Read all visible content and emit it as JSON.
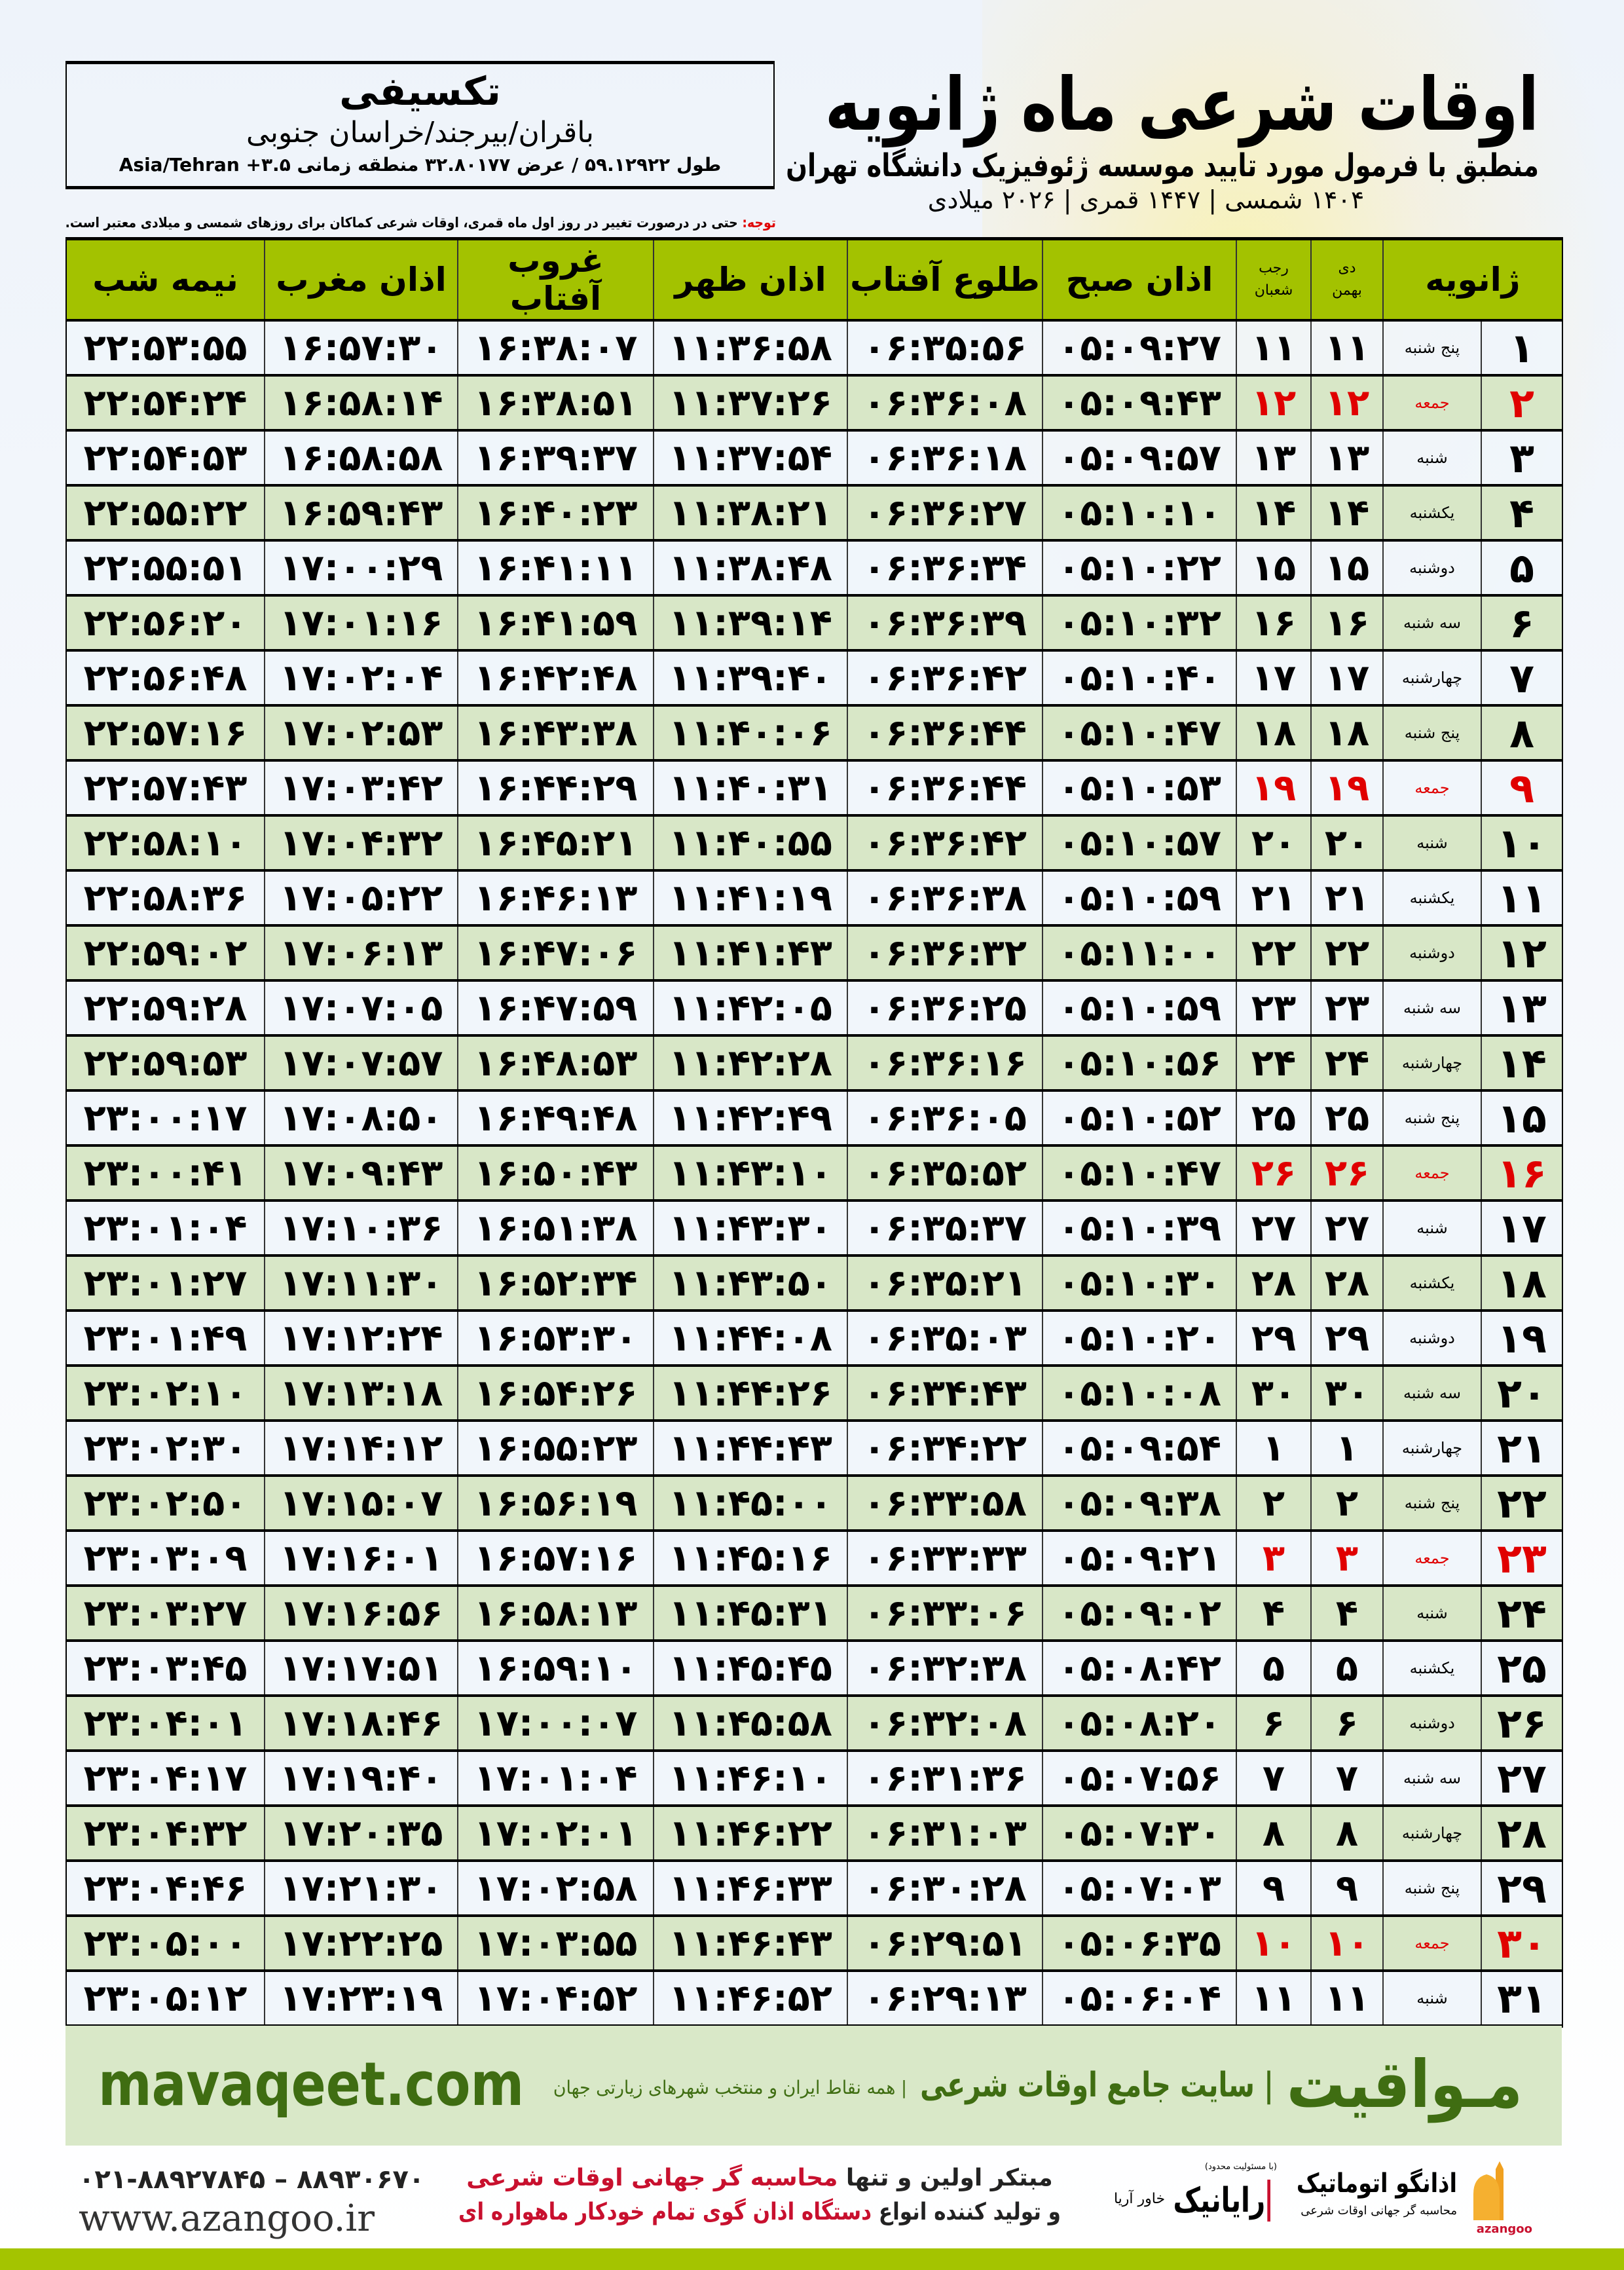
{
  "header": {
    "title": "اوقات شرعی ماه ژانویه",
    "subtitle": "منطبق با فرمول مورد تایید موسسه ژئوفیزیک دانشگاه تهران",
    "years": "۱۴۰۴ شمسی | ۱۴۴۷ قمری | ۲۰۲۶ میلادی"
  },
  "location": {
    "name": "تکسیفی",
    "path": "باقران/بیرجند/خراسان جنوبی",
    "coords": "طول ۵۹.۱۲۹۲۲ / عرض ۳۲.۸۰۱۷۷ منطقه زمانی ۳.۵+ Asia/Tehran"
  },
  "note": {
    "label": "توجه:",
    "text": " حتی در درصورت تغییر در روز اول ماه قمری، اوقات شرعی کماکان برای روزهای شمسی و میلادی معتبر است."
  },
  "table": {
    "columns": {
      "day": "ژانویه",
      "shamsi_top": "دی",
      "shamsi_bottom": "بهمن",
      "qamari_top": "رجب",
      "qamari_bottom": "شعبان",
      "fajr": "اذان صبح",
      "sunrise": "طلوع آفتاب",
      "dhuhr": "اذان ظهر",
      "sunset": "غروب آفتاب",
      "maghrib": "اذان مغرب",
      "midnight": "نیمه شب"
    },
    "holiday_color": "#e00000",
    "header_color": "#a3c200",
    "rows": [
      [
        "۱",
        "پنج شنبه",
        "۱۱",
        "۱۱",
        "۰۵:۰۹:۲۷",
        "۰۶:۳۵:۵۶",
        "۱۱:۳۶:۵۸",
        "۱۶:۳۸:۰۷",
        "۱۶:۵۷:۳۰",
        "۲۲:۵۳:۵۵",
        false
      ],
      [
        "۲",
        "جمعه",
        "۱۲",
        "۱۲",
        "۰۵:۰۹:۴۳",
        "۰۶:۳۶:۰۸",
        "۱۱:۳۷:۲۶",
        "۱۶:۳۸:۵۱",
        "۱۶:۵۸:۱۴",
        "۲۲:۵۴:۲۴",
        true
      ],
      [
        "۳",
        "شنبه",
        "۱۳",
        "۱۳",
        "۰۵:۰۹:۵۷",
        "۰۶:۳۶:۱۸",
        "۱۱:۳۷:۵۴",
        "۱۶:۳۹:۳۷",
        "۱۶:۵۸:۵۸",
        "۲۲:۵۴:۵۳",
        false
      ],
      [
        "۴",
        "یکشنبه",
        "۱۴",
        "۱۴",
        "۰۵:۱۰:۱۰",
        "۰۶:۳۶:۲۷",
        "۱۱:۳۸:۲۱",
        "۱۶:۴۰:۲۳",
        "۱۶:۵۹:۴۳",
        "۲۲:۵۵:۲۲",
        false
      ],
      [
        "۵",
        "دوشنبه",
        "۱۵",
        "۱۵",
        "۰۵:۱۰:۲۲",
        "۰۶:۳۶:۳۴",
        "۱۱:۳۸:۴۸",
        "۱۶:۴۱:۱۱",
        "۱۷:۰۰:۲۹",
        "۲۲:۵۵:۵۱",
        false
      ],
      [
        "۶",
        "سه شنبه",
        "۱۶",
        "۱۶",
        "۰۵:۱۰:۳۲",
        "۰۶:۳۶:۳۹",
        "۱۱:۳۹:۱۴",
        "۱۶:۴۱:۵۹",
        "۱۷:۰۱:۱۶",
        "۲۲:۵۶:۲۰",
        false
      ],
      [
        "۷",
        "چهارشنبه",
        "۱۷",
        "۱۷",
        "۰۵:۱۰:۴۰",
        "۰۶:۳۶:۴۲",
        "۱۱:۳۹:۴۰",
        "۱۶:۴۲:۴۸",
        "۱۷:۰۲:۰۴",
        "۲۲:۵۶:۴۸",
        false
      ],
      [
        "۸",
        "پنج شنبه",
        "۱۸",
        "۱۸",
        "۰۵:۱۰:۴۷",
        "۰۶:۳۶:۴۴",
        "۱۱:۴۰:۰۶",
        "۱۶:۴۳:۳۸",
        "۱۷:۰۲:۵۳",
        "۲۲:۵۷:۱۶",
        false
      ],
      [
        "۹",
        "جمعه",
        "۱۹",
        "۱۹",
        "۰۵:۱۰:۵۳",
        "۰۶:۳۶:۴۴",
        "۱۱:۴۰:۳۱",
        "۱۶:۴۴:۲۹",
        "۱۷:۰۳:۴۲",
        "۲۲:۵۷:۴۳",
        true
      ],
      [
        "۱۰",
        "شنبه",
        "۲۰",
        "۲۰",
        "۰۵:۱۰:۵۷",
        "۰۶:۳۶:۴۲",
        "۱۱:۴۰:۵۵",
        "۱۶:۴۵:۲۱",
        "۱۷:۰۴:۳۲",
        "۲۲:۵۸:۱۰",
        false
      ],
      [
        "۱۱",
        "یکشنبه",
        "۲۱",
        "۲۱",
        "۰۵:۱۰:۵۹",
        "۰۶:۳۶:۳۸",
        "۱۱:۴۱:۱۹",
        "۱۶:۴۶:۱۳",
        "۱۷:۰۵:۲۲",
        "۲۲:۵۸:۳۶",
        false
      ],
      [
        "۱۲",
        "دوشنبه",
        "۲۲",
        "۲۲",
        "۰۵:۱۱:۰۰",
        "۰۶:۳۶:۳۲",
        "۱۱:۴۱:۴۳",
        "۱۶:۴۷:۰۶",
        "۱۷:۰۶:۱۳",
        "۲۲:۵۹:۰۲",
        false
      ],
      [
        "۱۳",
        "سه شنبه",
        "۲۳",
        "۲۳",
        "۰۵:۱۰:۵۹",
        "۰۶:۳۶:۲۵",
        "۱۱:۴۲:۰۵",
        "۱۶:۴۷:۵۹",
        "۱۷:۰۷:۰۵",
        "۲۲:۵۹:۲۸",
        false
      ],
      [
        "۱۴",
        "چهارشنبه",
        "۲۴",
        "۲۴",
        "۰۵:۱۰:۵۶",
        "۰۶:۳۶:۱۶",
        "۱۱:۴۲:۲۸",
        "۱۶:۴۸:۵۳",
        "۱۷:۰۷:۵۷",
        "۲۲:۵۹:۵۳",
        false
      ],
      [
        "۱۵",
        "پنج شنبه",
        "۲۵",
        "۲۵",
        "۰۵:۱۰:۵۲",
        "۰۶:۳۶:۰۵",
        "۱۱:۴۲:۴۹",
        "۱۶:۴۹:۴۸",
        "۱۷:۰۸:۵۰",
        "۲۳:۰۰:۱۷",
        false
      ],
      [
        "۱۶",
        "جمعه",
        "۲۶",
        "۲۶",
        "۰۵:۱۰:۴۷",
        "۰۶:۳۵:۵۲",
        "۱۱:۴۳:۱۰",
        "۱۶:۵۰:۴۳",
        "۱۷:۰۹:۴۳",
        "۲۳:۰۰:۴۱",
        true
      ],
      [
        "۱۷",
        "شنبه",
        "۲۷",
        "۲۷",
        "۰۵:۱۰:۳۹",
        "۰۶:۳۵:۳۷",
        "۱۱:۴۳:۳۰",
        "۱۶:۵۱:۳۸",
        "۱۷:۱۰:۳۶",
        "۲۳:۰۱:۰۴",
        false
      ],
      [
        "۱۸",
        "یکشنبه",
        "۲۸",
        "۲۸",
        "۰۵:۱۰:۳۰",
        "۰۶:۳۵:۲۱",
        "۱۱:۴۳:۵۰",
        "۱۶:۵۲:۳۴",
        "۱۷:۱۱:۳۰",
        "۲۳:۰۱:۲۷",
        false
      ],
      [
        "۱۹",
        "دوشنبه",
        "۲۹",
        "۲۹",
        "۰۵:۱۰:۲۰",
        "۰۶:۳۵:۰۳",
        "۱۱:۴۴:۰۸",
        "۱۶:۵۳:۳۰",
        "۱۷:۱۲:۲۴",
        "۲۳:۰۱:۴۹",
        false
      ],
      [
        "۲۰",
        "سه شنبه",
        "۳۰",
        "۳۰",
        "۰۵:۱۰:۰۸",
        "۰۶:۳۴:۴۳",
        "۱۱:۴۴:۲۶",
        "۱۶:۵۴:۲۶",
        "۱۷:۱۳:۱۸",
        "۲۳:۰۲:۱۰",
        false
      ],
      [
        "۲۱",
        "چهارشنبه",
        "۱",
        "۱",
        "۰۵:۰۹:۵۴",
        "۰۶:۳۴:۲۲",
        "۱۱:۴۴:۴۳",
        "۱۶:۵۵:۲۳",
        "۱۷:۱۴:۱۲",
        "۲۳:۰۲:۳۰",
        false
      ],
      [
        "۲۲",
        "پنج شنبه",
        "۲",
        "۲",
        "۰۵:۰۹:۳۸",
        "۰۶:۳۳:۵۸",
        "۱۱:۴۵:۰۰",
        "۱۶:۵۶:۱۹",
        "۱۷:۱۵:۰۷",
        "۲۳:۰۲:۵۰",
        false
      ],
      [
        "۲۳",
        "جمعه",
        "۳",
        "۳",
        "۰۵:۰۹:۲۱",
        "۰۶:۳۳:۳۳",
        "۱۱:۴۵:۱۶",
        "۱۶:۵۷:۱۶",
        "۱۷:۱۶:۰۱",
        "۲۳:۰۳:۰۹",
        true
      ],
      [
        "۲۴",
        "شنبه",
        "۴",
        "۴",
        "۰۵:۰۹:۰۲",
        "۰۶:۳۳:۰۶",
        "۱۱:۴۵:۳۱",
        "۱۶:۵۸:۱۳",
        "۱۷:۱۶:۵۶",
        "۲۳:۰۳:۲۷",
        false
      ],
      [
        "۲۵",
        "یکشنبه",
        "۵",
        "۵",
        "۰۵:۰۸:۴۲",
        "۰۶:۳۲:۳۸",
        "۱۱:۴۵:۴۵",
        "۱۶:۵۹:۱۰",
        "۱۷:۱۷:۵۱",
        "۲۳:۰۳:۴۵",
        false
      ],
      [
        "۲۶",
        "دوشنبه",
        "۶",
        "۶",
        "۰۵:۰۸:۲۰",
        "۰۶:۳۲:۰۸",
        "۱۱:۴۵:۵۸",
        "۱۷:۰۰:۰۷",
        "۱۷:۱۸:۴۶",
        "۲۳:۰۴:۰۱",
        false
      ],
      [
        "۲۷",
        "سه شنبه",
        "۷",
        "۷",
        "۰۵:۰۷:۵۶",
        "۰۶:۳۱:۳۶",
        "۱۱:۴۶:۱۰",
        "۱۷:۰۱:۰۴",
        "۱۷:۱۹:۴۰",
        "۲۳:۰۴:۱۷",
        false
      ],
      [
        "۲۸",
        "چهارشنبه",
        "۸",
        "۸",
        "۰۵:۰۷:۳۰",
        "۰۶:۳۱:۰۳",
        "۱۱:۴۶:۲۲",
        "۱۷:۰۲:۰۱",
        "۱۷:۲۰:۳۵",
        "۲۳:۰۴:۳۲",
        false
      ],
      [
        "۲۹",
        "پنج شنبه",
        "۹",
        "۹",
        "۰۵:۰۷:۰۳",
        "۰۶:۳۰:۲۸",
        "۱۱:۴۶:۳۳",
        "۱۷:۰۲:۵۸",
        "۱۷:۲۱:۳۰",
        "۲۳:۰۴:۴۶",
        false
      ],
      [
        "۳۰",
        "جمعه",
        "۱۰",
        "۱۰",
        "۰۵:۰۶:۳۵",
        "۰۶:۲۹:۵۱",
        "۱۱:۴۶:۴۳",
        "۱۷:۰۳:۵۵",
        "۱۷:۲۲:۲۵",
        "۲۳:۰۵:۰۰",
        true
      ],
      [
        "۳۱",
        "شنبه",
        "۱۱",
        "۱۱",
        "۰۵:۰۶:۰۴",
        "۰۶:۲۹:۱۳",
        "۱۱:۴۶:۵۲",
        "۱۷:۰۴:۵۲",
        "۱۷:۲۳:۱۹",
        "۲۳:۰۵:۱۲",
        false
      ]
    ]
  },
  "footer": {
    "logo": "مـواقیت",
    "tagline": "| سایت جامع اوقات شرعی",
    "subtag": "| همه نقاط ایران و منتخب شهرهای زیارتی جهان",
    "url": "mavaqeet.com",
    "brand_color": "#3f6d12"
  },
  "sponsors": {
    "azangoo_name": "اذانگو اتوماتیک",
    "azangoo_sub": "محاسبه گر جهانی اوقات شرعی",
    "azangoo_latin": "azangoo",
    "rayanik_name": "رایانیک",
    "rayanik_sub": "خاور آریا",
    "rayanik_note": "(با مسئولیت محدود)",
    "promo_line1_a": "مبتکر اولین و تنها ",
    "promo_line1_b": "محاسبه گر جهانی اوقات شرعی",
    "promo_line2_a": "و تولید کننده انواع ",
    "promo_line2_b": "دستگاه اذان گوی تمام خودکار ماهواره ای",
    "phone": "۰۲۱-۸۸۹۲۷۸۴۵ – ۸۸۹۳۰۶۷۰",
    "website": "www.azangoo.ir"
  }
}
